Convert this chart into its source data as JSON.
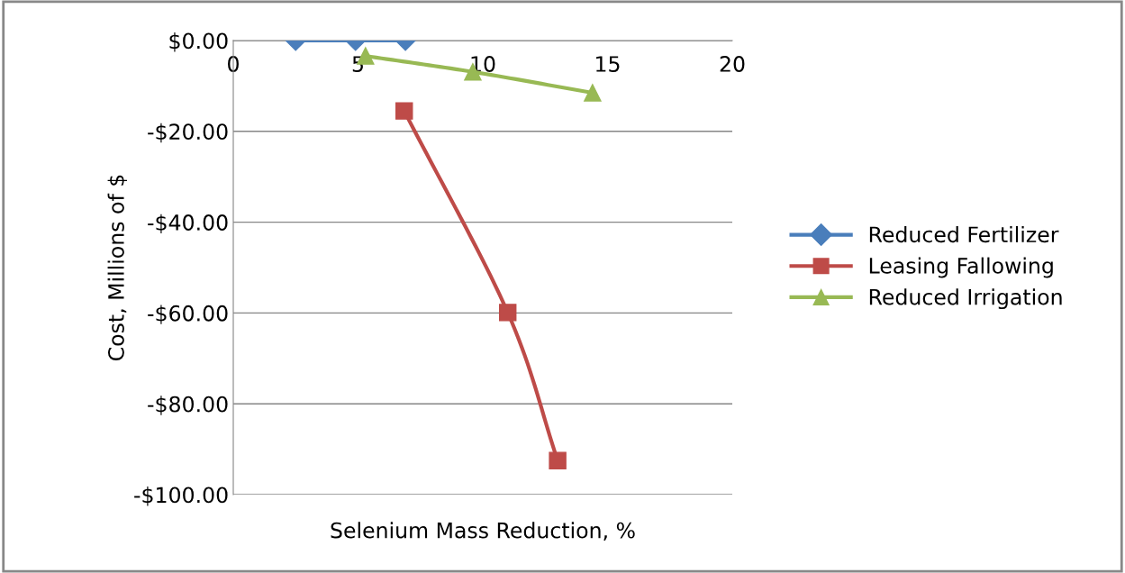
{
  "chart_data": {
    "type": "line",
    "xlabel": "Selenium Mass Reduction, %",
    "ylabel": "Cost, Millions of $",
    "xlim": [
      0,
      20
    ],
    "xticks": [
      0,
      5,
      10,
      15,
      20
    ],
    "ylim": [
      -100,
      0
    ],
    "yticks": [
      {
        "value": -100,
        "label": "-$100.00"
      },
      {
        "value": -80,
        "label": "-$80.00"
      },
      {
        "value": -60,
        "label": "-$60.00"
      },
      {
        "value": -40,
        "label": "-$40.00"
      },
      {
        "value": -20,
        "label": "-$20.00"
      },
      {
        "value": 0,
        "label": "$0.00"
      }
    ],
    "grid": "y",
    "legend": "right",
    "series": [
      {
        "name": "Reduced Fertilizer",
        "color": "#4a7ebb",
        "marker": "diamond",
        "x": [
          2.5,
          4.9,
          6.9
        ],
        "values": [
          0,
          0,
          0
        ]
      },
      {
        "name": "Leasing Fallowing",
        "color": "#be4b48",
        "marker": "square",
        "x": [
          6.85,
          11.0,
          13.0
        ],
        "values": [
          -15.5,
          -59.9,
          -92.5
        ]
      },
      {
        "name": "Reduced Irrigation",
        "color": "#98b954",
        "marker": "triangle",
        "x": [
          5.3,
          9.6,
          14.4
        ],
        "values": [
          -3.4,
          -6.9,
          -11.5
        ]
      }
    ]
  }
}
